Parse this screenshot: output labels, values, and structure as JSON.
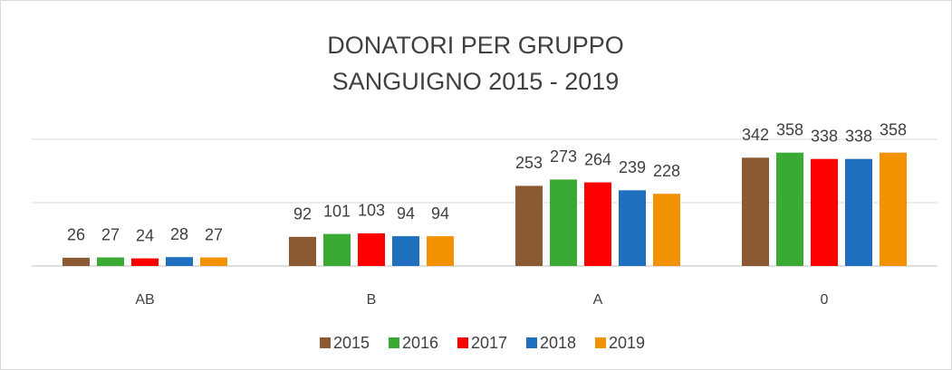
{
  "chart_data": {
    "type": "bar",
    "title": "DONATORI PER GRUPPO SANGUIGNO 2015 - 2019",
    "categories": [
      "AB",
      "B",
      "A",
      "0"
    ],
    "series": [
      {
        "name": "2015",
        "color": "#8c5a32",
        "values": [
          26,
          92,
          253,
          342
        ]
      },
      {
        "name": "2016",
        "color": "#3aaa35",
        "values": [
          27,
          101,
          273,
          358
        ]
      },
      {
        "name": "2017",
        "color": "#ff0000",
        "values": [
          24,
          103,
          264,
          338
        ]
      },
      {
        "name": "2018",
        "color": "#1f6fbf",
        "values": [
          28,
          94,
          239,
          338
        ]
      },
      {
        "name": "2019",
        "color": "#f39200",
        "values": [
          27,
          94,
          228,
          358
        ]
      }
    ],
    "ylim": [
      0,
      400
    ],
    "yticks": [
      0,
      200,
      400
    ],
    "grid": true,
    "legend": "bottom"
  }
}
